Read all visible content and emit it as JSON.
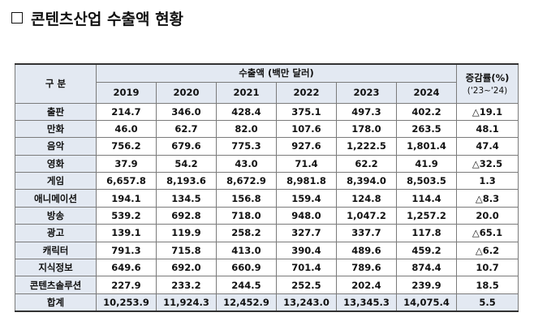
{
  "title": "콘텐츠산업 수출액 현황",
  "table": {
    "header_category": "구 분",
    "header_group": "수출액 (백만 달러)",
    "years": [
      "2019",
      "2020",
      "2021",
      "2022",
      "2023",
      "2024"
    ],
    "growth_header": "증감률(%)",
    "growth_sub": "('23~'24)",
    "rows": [
      {
        "name": "출판",
        "values": [
          "214.7",
          "346.0",
          "428.4",
          "375.1",
          "497.3",
          "402.2"
        ],
        "growth": "△19.1"
      },
      {
        "name": "만화",
        "values": [
          "46.0",
          "62.7",
          "82.0",
          "107.6",
          "178.0",
          "263.5"
        ],
        "growth": "48.1"
      },
      {
        "name": "음악",
        "values": [
          "756.2",
          "679.6",
          "775.3",
          "927.6",
          "1,222.5",
          "1,801.4"
        ],
        "growth": "47.4"
      },
      {
        "name": "영화",
        "values": [
          "37.9",
          "54.2",
          "43.0",
          "71.4",
          "62.2",
          "41.9"
        ],
        "growth": "△32.5"
      },
      {
        "name": "게임",
        "values": [
          "6,657.8",
          "8,193.6",
          "8,672.9",
          "8,981.8",
          "8,394.0",
          "8,503.5"
        ],
        "growth": "1.3"
      },
      {
        "name": "애니메이션",
        "values": [
          "194.1",
          "134.5",
          "156.8",
          "159.4",
          "124.8",
          "114.4"
        ],
        "growth": "△8.3"
      },
      {
        "name": "방송",
        "values": [
          "539.2",
          "692.8",
          "718.0",
          "948.0",
          "1,047.2",
          "1,257.2"
        ],
        "growth": "20.0"
      },
      {
        "name": "광고",
        "values": [
          "139.1",
          "119.9",
          "258.2",
          "327.7",
          "337.7",
          "117.8"
        ],
        "growth": "△65.1"
      },
      {
        "name": "캐릭터",
        "values": [
          "791.3",
          "715.8",
          "413.0",
          "390.4",
          "489.6",
          "459.2"
        ],
        "growth": "△6.2"
      },
      {
        "name": "지식정보",
        "values": [
          "649.6",
          "692.0",
          "660.9",
          "701.4",
          "789.6",
          "874.4"
        ],
        "growth": "10.7"
      },
      {
        "name": "콘텐츠솔루션",
        "values": [
          "227.9",
          "233.2",
          "244.5",
          "252.5",
          "202.4",
          "239.9"
        ],
        "growth": "18.5"
      },
      {
        "name": "합계",
        "values": [
          "10,253.9",
          "11,924.3",
          "12,452.9",
          "13,243.0",
          "13,345.3",
          "14,075.4"
        ],
        "growth": "5.5",
        "total": true
      }
    ]
  }
}
